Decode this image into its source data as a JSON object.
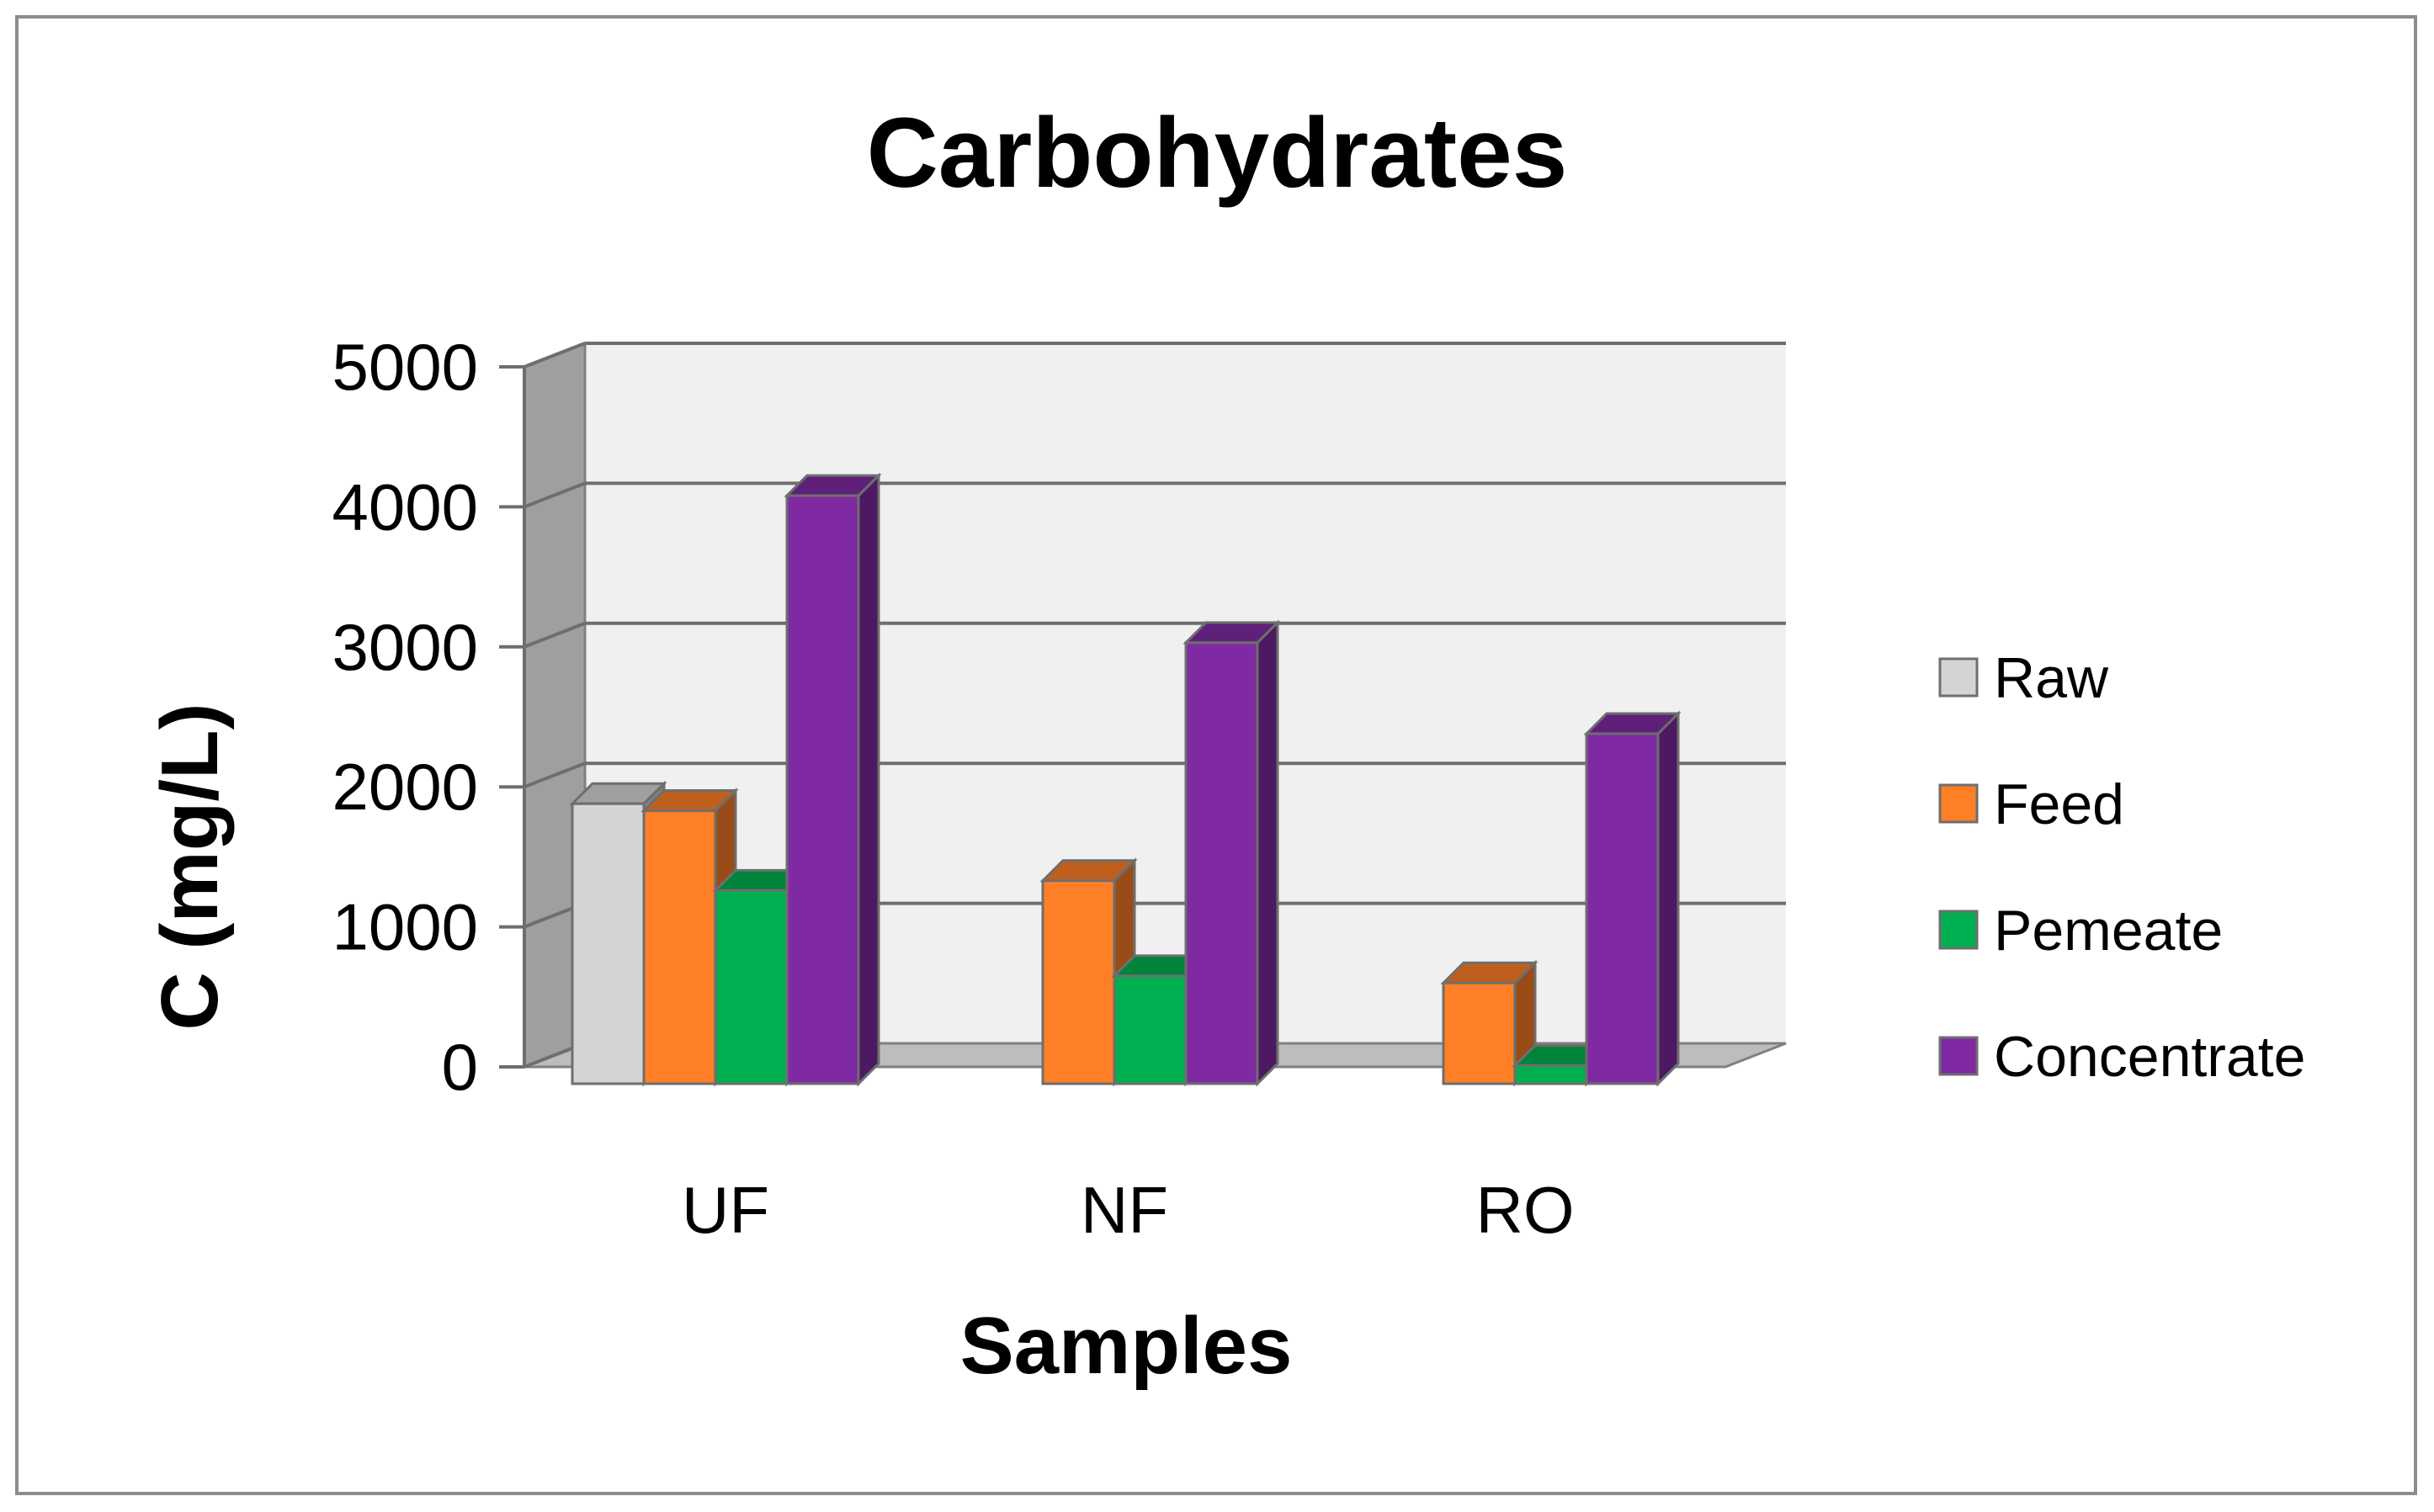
{
  "chart_data": {
    "type": "bar",
    "title": "Carbohydrates",
    "xlabel": "Samples",
    "ylabel": "C (mg/L)",
    "categories": [
      "UF",
      "NF",
      "RO"
    ],
    "ylim": [
      0,
      5000
    ],
    "yticks": [
      "0",
      "1000",
      "2000",
      "3000",
      "4000",
      "5000"
    ],
    "grid": true,
    "legend_position": "right",
    "series": [
      {
        "name": "Raw",
        "color": "#D4D4D4",
        "values": [
          2000,
          null,
          null
        ]
      },
      {
        "name": "Feed",
        "color": "#FF7F27",
        "values": [
          1950,
          1450,
          720
        ]
      },
      {
        "name": "Pemeate",
        "color": "#00B050",
        "values": [
          1380,
          770,
          130
        ]
      },
      {
        "name": "Concentrate",
        "color": "#7F2AA3",
        "values": [
          4200,
          3150,
          2500
        ]
      }
    ]
  }
}
